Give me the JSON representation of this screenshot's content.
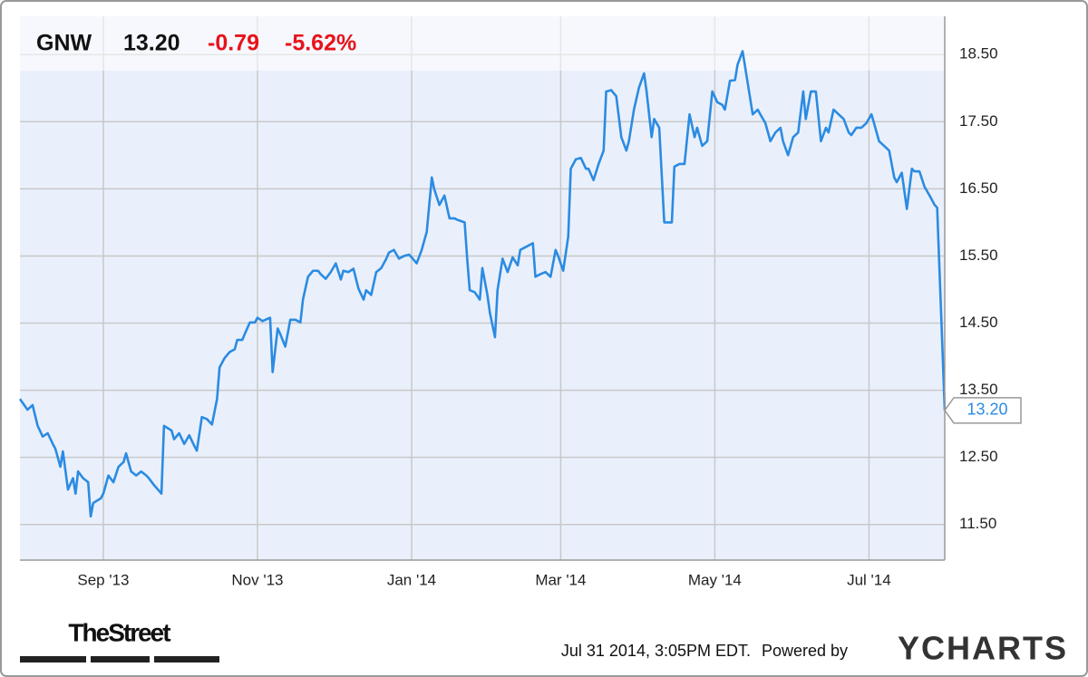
{
  "chart_data": {
    "type": "line",
    "ticker": "GNW",
    "price": "13.20",
    "change": "-0.79",
    "change_pct": "-5.62%",
    "x": [
      -2,
      1,
      3,
      5,
      7,
      9,
      11,
      12,
      14,
      15,
      17,
      19,
      20,
      21,
      23,
      25,
      26,
      27,
      30,
      31,
      33,
      35,
      37,
      39,
      40,
      42,
      44,
      46,
      48,
      49,
      51,
      54,
      55,
      58,
      59,
      61,
      63,
      65,
      67,
      68,
      70,
      72,
      74,
      76,
      77,
      79,
      81,
      83,
      84,
      86,
      87,
      89,
      91,
      92,
      94,
      97,
      98,
      100,
      101,
      103,
      105,
      107,
      109,
      110,
      112,
      114,
      116,
      117,
      119,
      121,
      123,
      125,
      126,
      128,
      130,
      132,
      134,
      135,
      137,
      139,
      141,
      143,
      144,
      146,
      148,
      150,
      152,
      153,
      155,
      157,
      159,
      161,
      162,
      164,
      166,
      168,
      170,
      171,
      174,
      175,
      176,
      178,
      180,
      181,
      183,
      184,
      186,
      187,
      189,
      191,
      193,
      195,
      196,
      198,
      201,
      202,
      204,
      206,
      208,
      210,
      211,
      213,
      215,
      216,
      218,
      220,
      222,
      223,
      225,
      227,
      229,
      230,
      232,
      234,
      236,
      238,
      239,
      241,
      243,
      245,
      246,
      248,
      249,
      251,
      253,
      256,
      257,
      259,
      261,
      263,
      265,
      266,
      268,
      270,
      272,
      274,
      276,
      277,
      279,
      281,
      282,
      284,
      286,
      288,
      290,
      291,
      293,
      295,
      297,
      299,
      300,
      302,
      304,
      306,
      308,
      309,
      311,
      313,
      315,
      317,
      318,
      320,
      322,
      324,
      326,
      327,
      329,
      331,
      333,
      335,
      336,
      338,
      340,
      342,
      344,
      345,
      347,
      349,
      351,
      352,
      354,
      356,
      358,
      360,
      361,
      364
    ],
    "series": [
      {
        "name": "GNW",
        "color": "#2b8be2",
        "values": [
          13.37,
          13.21,
          13.28,
          12.97,
          12.81,
          12.86,
          12.7,
          12.63,
          12.36,
          12.59,
          12.02,
          12.19,
          11.96,
          12.29,
          12.19,
          12.13,
          11.62,
          11.82,
          11.89,
          11.96,
          12.23,
          12.13,
          12.36,
          12.43,
          12.56,
          12.29,
          12.23,
          12.29,
          12.23,
          12.19,
          12.09,
          11.96,
          12.97,
          12.9,
          12.77,
          12.86,
          12.7,
          12.83,
          12.67,
          12.6,
          13.1,
          13.07,
          12.99,
          13.37,
          13.84,
          13.98,
          14.07,
          14.11,
          14.25,
          14.25,
          14.34,
          14.51,
          14.51,
          14.58,
          14.53,
          14.58,
          13.77,
          14.42,
          14.34,
          14.15,
          14.55,
          14.55,
          14.51,
          14.85,
          15.19,
          15.28,
          15.28,
          15.23,
          15.16,
          15.26,
          15.39,
          15.15,
          15.28,
          15.26,
          15.31,
          15.01,
          14.85,
          14.99,
          14.92,
          15.26,
          15.32,
          15.46,
          15.55,
          15.59,
          15.46,
          15.5,
          15.52,
          15.48,
          15.39,
          15.59,
          15.86,
          16.67,
          16.49,
          16.26,
          16.4,
          16.06,
          16.06,
          16.04,
          16.0,
          15.46,
          14.99,
          14.96,
          14.85,
          15.32,
          14.92,
          14.65,
          14.29,
          14.99,
          15.46,
          15.26,
          15.48,
          15.36,
          15.59,
          15.63,
          15.69,
          15.19,
          15.23,
          15.26,
          15.19,
          15.59,
          15.5,
          15.28,
          15.79,
          16.8,
          16.94,
          16.96,
          16.8,
          16.8,
          16.63,
          16.87,
          17.07,
          17.95,
          17.97,
          17.88,
          17.27,
          17.07,
          17.21,
          17.68,
          18.01,
          18.22,
          17.95,
          17.27,
          17.54,
          17.41,
          16.0,
          16.0,
          16.83,
          16.87,
          16.87,
          17.61,
          17.27,
          17.41,
          17.14,
          17.21,
          17.95,
          17.79,
          17.75,
          17.68,
          18.11,
          18.12,
          18.35,
          18.55,
          18.08,
          17.61,
          17.68,
          17.61,
          17.48,
          17.21,
          17.34,
          17.41,
          17.21,
          17.0,
          17.27,
          17.34,
          17.95,
          17.54,
          17.95,
          17.95,
          17.21,
          17.41,
          17.34,
          17.68,
          17.61,
          17.54,
          17.34,
          17.3,
          17.41,
          17.41,
          17.48,
          17.61,
          17.48,
          17.21,
          17.14,
          17.07,
          16.67,
          16.6,
          16.74,
          16.2,
          16.8,
          16.76,
          16.76,
          16.53,
          16.4,
          16.26,
          16.22,
          13.2
        ]
      }
    ],
    "xlim": [
      -2,
      364
    ],
    "xticks": [
      {
        "value": 31,
        "label": "Sep '13"
      },
      {
        "value": 92,
        "label": "Nov '13"
      },
      {
        "value": 153,
        "label": "Jan '14"
      },
      {
        "value": 212,
        "label": "Mar '14"
      },
      {
        "value": 273,
        "label": "May '14"
      },
      {
        "value": 334,
        "label": "Jul '14"
      }
    ],
    "ylim": [
      10.97,
      19.07
    ],
    "yticks": [
      {
        "value": 11.5,
        "label": "11.50"
      },
      {
        "value": 12.5,
        "label": "12.50"
      },
      {
        "value": 13.5,
        "label": "13.50"
      },
      {
        "value": 14.5,
        "label": "14.50"
      },
      {
        "value": 15.5,
        "label": "15.50"
      },
      {
        "value": 16.5,
        "label": "16.50"
      },
      {
        "value": 17.5,
        "label": "17.50"
      },
      {
        "value": 18.5,
        "label": "18.50"
      }
    ],
    "grid": true
  },
  "footer": {
    "source_logo": "TheStreet",
    "timestamp": "Jul 31 2014, 3:05PM EDT.",
    "powered_by": "Powered by",
    "brand": "YCHARTS"
  }
}
